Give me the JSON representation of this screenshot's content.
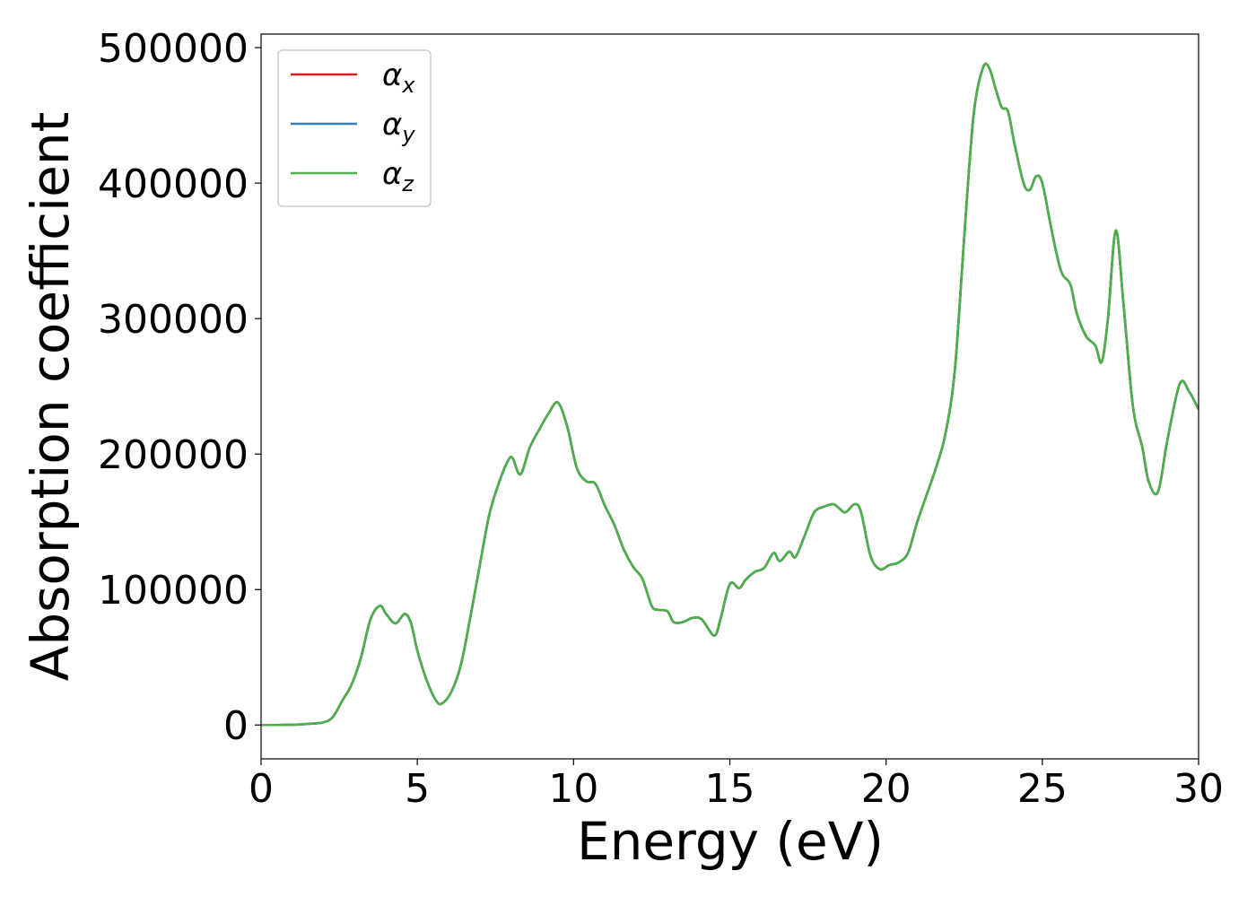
{
  "chart_data": {
    "type": "line",
    "title": "",
    "xlabel": "Energy (eV)",
    "ylabel": "Absorption coefficient",
    "xlim": [
      0,
      30
    ],
    "ylim": [
      -25000,
      510000
    ],
    "xticks": [
      0,
      5,
      10,
      15,
      20,
      25,
      30
    ],
    "xtick_labels": [
      "0",
      "5",
      "10",
      "15",
      "20",
      "25",
      "30"
    ],
    "yticks": [
      0,
      100000,
      200000,
      300000,
      400000,
      500000
    ],
    "ytick_labels": [
      "0",
      "100000",
      "200000",
      "300000",
      "400000",
      "500000"
    ],
    "grid": false,
    "legend_position": "top-left",
    "x": [
      0,
      0.5,
      1,
      1.5,
      2,
      2.3,
      2.6,
      2.9,
      3.2,
      3.5,
      3.8,
      4.0,
      4.3,
      4.6,
      4.8,
      5.0,
      5.3,
      5.6,
      5.8,
      6.1,
      6.4,
      6.7,
      7.0,
      7.3,
      7.6,
      7.9,
      8.05,
      8.3,
      8.6,
      8.9,
      9.2,
      9.5,
      9.8,
      10.1,
      10.4,
      10.7,
      11.0,
      11.3,
      11.6,
      11.9,
      12.2,
      12.5,
      12.7,
      13.0,
      13.2,
      13.5,
      13.8,
      14.1,
      14.5,
      14.7,
      15.0,
      15.3,
      15.5,
      15.8,
      16.1,
      16.4,
      16.6,
      16.9,
      17.1,
      17.4,
      17.7,
      18.0,
      18.3,
      18.5,
      18.7,
      19.0,
      19.2,
      19.5,
      19.8,
      20.1,
      20.4,
      20.7,
      21.0,
      21.3,
      21.6,
      21.9,
      22.2,
      22.5,
      22.8,
      23.1,
      23.3,
      23.5,
      23.7,
      23.9,
      24.1,
      24.4,
      24.6,
      24.8,
      25.0,
      25.3,
      25.6,
      25.9,
      26.1,
      26.4,
      26.7,
      26.9,
      27.1,
      27.35,
      27.6,
      27.9,
      28.2,
      28.4,
      28.7,
      29.0,
      29.4,
      29.7,
      30.0
    ],
    "series": [
      {
        "name": "α_x",
        "color": "#e41a1c",
        "values": [
          0,
          0,
          200,
          800,
          2000,
          6000,
          18000,
          30000,
          50000,
          78000,
          88000,
          82000,
          75000,
          82000,
          75000,
          55000,
          33000,
          18000,
          16000,
          25000,
          45000,
          80000,
          118000,
          155000,
          178000,
          195000,
          197000,
          185000,
          205000,
          218000,
          230000,
          238000,
          220000,
          190000,
          180000,
          178000,
          162000,
          148000,
          130000,
          117000,
          108000,
          88000,
          85000,
          84000,
          76000,
          76000,
          79000,
          78000,
          66000,
          78000,
          104000,
          101000,
          107000,
          113000,
          116000,
          127000,
          121000,
          128000,
          124000,
          140000,
          157000,
          161000,
          163000,
          160000,
          157000,
          163000,
          157000,
          125000,
          115000,
          118000,
          120000,
          127000,
          150000,
          170000,
          190000,
          215000,
          262000,
          360000,
          450000,
          485000,
          485000,
          470000,
          456000,
          453000,
          430000,
          400000,
          395000,
          405000,
          400000,
          365000,
          335000,
          325000,
          304000,
          287000,
          280000,
          268000,
          300000,
          365000,
          310000,
          235000,
          205000,
          180000,
          172000,
          210000,
          252000,
          246000,
          233000
        ]
      },
      {
        "name": "α_y",
        "color": "#377eb8",
        "values": [
          0,
          0,
          200,
          800,
          2000,
          6000,
          18000,
          30000,
          50000,
          78000,
          88000,
          82000,
          75000,
          82000,
          75000,
          55000,
          33000,
          18000,
          16000,
          25000,
          45000,
          80000,
          118000,
          155000,
          178000,
          195000,
          197000,
          185000,
          205000,
          218000,
          230000,
          238000,
          220000,
          190000,
          180000,
          178000,
          162000,
          148000,
          130000,
          117000,
          108000,
          88000,
          85000,
          84000,
          76000,
          76000,
          79000,
          78000,
          66000,
          78000,
          104000,
          101000,
          107000,
          113000,
          116000,
          127000,
          121000,
          128000,
          124000,
          140000,
          157000,
          161000,
          163000,
          160000,
          157000,
          163000,
          157000,
          125000,
          115000,
          118000,
          120000,
          127000,
          150000,
          170000,
          190000,
          215000,
          262000,
          360000,
          450000,
          485000,
          485000,
          470000,
          456000,
          453000,
          430000,
          400000,
          395000,
          405000,
          400000,
          365000,
          335000,
          325000,
          304000,
          287000,
          280000,
          268000,
          300000,
          365000,
          310000,
          235000,
          205000,
          180000,
          172000,
          210000,
          252000,
          246000,
          233000
        ]
      },
      {
        "name": "α_z",
        "color": "#4daf4a",
        "values": [
          0,
          0,
          200,
          800,
          2000,
          6000,
          18000,
          30000,
          50000,
          78000,
          88000,
          82000,
          75000,
          82000,
          75000,
          55000,
          33000,
          18000,
          16000,
          25000,
          45000,
          80000,
          118000,
          155000,
          178000,
          195000,
          197000,
          185000,
          205000,
          218000,
          230000,
          238000,
          220000,
          190000,
          180000,
          178000,
          162000,
          148000,
          130000,
          117000,
          108000,
          88000,
          85000,
          84000,
          76000,
          76000,
          79000,
          78000,
          66000,
          78000,
          104000,
          101000,
          107000,
          113000,
          116000,
          127000,
          121000,
          128000,
          124000,
          140000,
          157000,
          161000,
          163000,
          160000,
          157000,
          163000,
          157000,
          125000,
          115000,
          118000,
          120000,
          127000,
          150000,
          170000,
          190000,
          215000,
          262000,
          360000,
          450000,
          485000,
          485000,
          470000,
          456000,
          453000,
          430000,
          400000,
          395000,
          405000,
          400000,
          365000,
          335000,
          325000,
          304000,
          287000,
          280000,
          268000,
          300000,
          365000,
          310000,
          235000,
          205000,
          180000,
          172000,
          210000,
          252000,
          246000,
          233000
        ]
      }
    ],
    "legend": [
      {
        "symbol": "α",
        "subscript": "x"
      },
      {
        "symbol": "α",
        "subscript": "y"
      },
      {
        "symbol": "α",
        "subscript": "z"
      }
    ]
  }
}
